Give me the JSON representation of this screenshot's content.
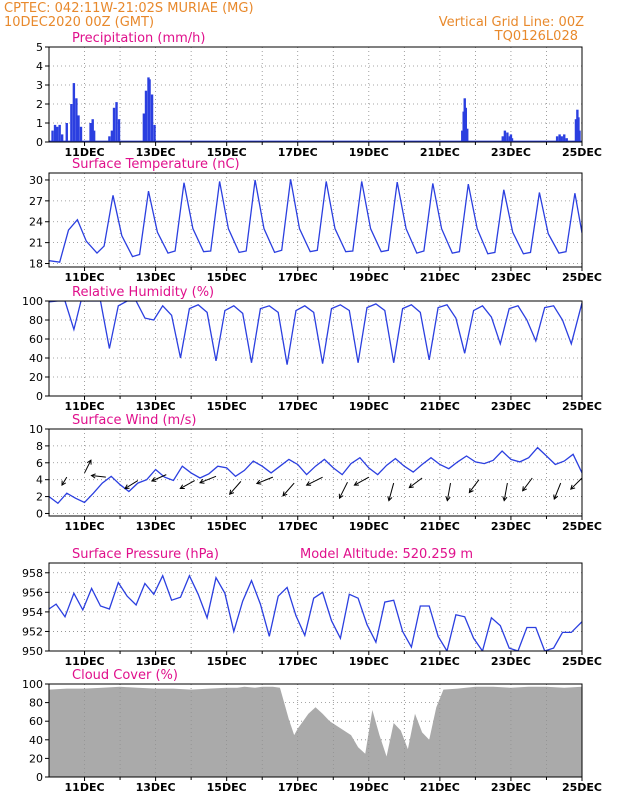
{
  "header": {
    "line1_left": "CPTEC:   042:11W-21:02S   MURIAE (MG)",
    "line2_left": "10DEC2020 00Z (GMT)",
    "line1_right": "Vertical Grid Line: 00Z",
    "line2_right": "TQ0126L028"
  },
  "colors": {
    "header": "#e8892c",
    "title": "#e0108c",
    "series": "#2b3fe0",
    "cloud": "#aaaaaa",
    "grid": "#888888"
  },
  "x_axis": {
    "tick_labels": [
      "11DEC",
      "13DEC",
      "15DEC",
      "17DEC",
      "19DEC",
      "21DEC",
      "23DEC",
      "25DEC"
    ],
    "tick_days": [
      11,
      13,
      15,
      17,
      19,
      21,
      23,
      25
    ],
    "range_days": [
      10,
      25
    ]
  },
  "chart_data": [
    {
      "type": "bar",
      "title": "Precipitation (mm/h)",
      "ylim": [
        0,
        5
      ],
      "yticks": [
        0,
        1,
        2,
        3,
        4,
        5
      ],
      "x": [
        10.1,
        10.17,
        10.23,
        10.3,
        10.37,
        10.5,
        10.63,
        10.7,
        10.77,
        10.83,
        10.9,
        11.17,
        11.2,
        11.23,
        11.27,
        11.7,
        11.77,
        11.83,
        11.9,
        11.97,
        12.67,
        12.73,
        12.8,
        12.83,
        12.9,
        12.97,
        21.63,
        21.67,
        21.7,
        21.73,
        21.77,
        22.77,
        22.83,
        22.9,
        22.97,
        23.0,
        23.03,
        24.3,
        24.37,
        24.43,
        24.5,
        24.57,
        24.83,
        24.87,
        24.9,
        24.93
      ],
      "values": [
        0.6,
        0.9,
        0.8,
        0.9,
        0.4,
        1.0,
        2.0,
        3.1,
        2.3,
        1.4,
        0.8,
        1.0,
        0.8,
        1.2,
        0.6,
        0.3,
        0.6,
        1.8,
        2.1,
        1.2,
        1.5,
        2.7,
        3.4,
        3.3,
        2.5,
        0.9,
        0.6,
        1.6,
        2.3,
        1.8,
        0.7,
        0.3,
        0.6,
        0.5,
        0.3,
        0.4,
        0.2,
        0.3,
        0.4,
        0.3,
        0.4,
        0.2,
        1.2,
        1.7,
        1.3,
        0.6
      ]
    },
    {
      "type": "line",
      "title": "Surface Temperature (nC)",
      "ylim": [
        17.5,
        31
      ],
      "yticks": [
        18,
        21,
        24,
        27,
        30
      ],
      "x": [
        10.0,
        10.3,
        10.55,
        10.8,
        11.05,
        11.35,
        11.55,
        11.8,
        12.05,
        12.35,
        12.55,
        12.8,
        13.05,
        13.35,
        13.55,
        13.8,
        14.05,
        14.35,
        14.55,
        14.8,
        15.05,
        15.35,
        15.55,
        15.8,
        16.05,
        16.35,
        16.55,
        16.8,
        17.05,
        17.35,
        17.55,
        17.8,
        18.05,
        18.35,
        18.55,
        18.8,
        19.05,
        19.35,
        19.55,
        19.8,
        20.05,
        20.35,
        20.55,
        20.8,
        21.05,
        21.35,
        21.55,
        21.8,
        22.05,
        22.35,
        22.55,
        22.8,
        23.05,
        23.35,
        23.55,
        23.8,
        24.05,
        24.35,
        24.55,
        24.8,
        25.0
      ],
      "values": [
        18.4,
        18.2,
        22.8,
        24.3,
        21.2,
        19.5,
        20.5,
        27.8,
        22.0,
        19.0,
        19.3,
        28.4,
        22.5,
        19.5,
        19.8,
        29.6,
        23.0,
        19.7,
        19.8,
        29.8,
        23.0,
        19.6,
        19.8,
        30.0,
        23.0,
        19.6,
        19.9,
        30.1,
        23.0,
        19.7,
        19.9,
        29.8,
        23.0,
        19.7,
        19.8,
        29.8,
        23.0,
        19.7,
        19.9,
        29.7,
        23.0,
        19.5,
        19.8,
        29.5,
        23.0,
        19.5,
        19.7,
        29.4,
        23.0,
        19.4,
        19.6,
        28.6,
        22.5,
        19.4,
        19.6,
        28.2,
        22.3,
        19.5,
        19.7,
        28.1,
        22.4
      ]
    },
    {
      "type": "line",
      "title": "Relative Humidity (%)",
      "ylim": [
        0,
        100
      ],
      "yticks": [
        0,
        20,
        40,
        60,
        80,
        100
      ],
      "x": [
        10.0,
        10.25,
        10.45,
        10.7,
        10.9,
        11.2,
        11.45,
        11.7,
        11.95,
        12.2,
        12.45,
        12.7,
        12.95,
        13.2,
        13.45,
        13.7,
        13.95,
        14.2,
        14.45,
        14.7,
        14.95,
        15.2,
        15.45,
        15.7,
        15.95,
        16.2,
        16.45,
        16.7,
        16.95,
        17.2,
        17.45,
        17.7,
        17.95,
        18.2,
        18.45,
        18.7,
        18.95,
        19.2,
        19.45,
        19.7,
        19.95,
        20.2,
        20.45,
        20.7,
        20.95,
        21.2,
        21.45,
        21.7,
        21.95,
        22.2,
        22.45,
        22.7,
        22.95,
        23.2,
        23.45,
        23.7,
        23.95,
        24.2,
        24.45,
        24.7,
        25.0
      ],
      "values": [
        99,
        100,
        100,
        70,
        100,
        100,
        100,
        50,
        95,
        100,
        100,
        82,
        80,
        95,
        85,
        40,
        92,
        96,
        88,
        37,
        90,
        95,
        87,
        35,
        92,
        95,
        88,
        33,
        90,
        95,
        88,
        34,
        92,
        96,
        90,
        35,
        93,
        97,
        90,
        35,
        92,
        96,
        88,
        38,
        93,
        96,
        82,
        45,
        90,
        95,
        83,
        55,
        92,
        95,
        80,
        58,
        93,
        95,
        80,
        55,
        98
      ]
    },
    {
      "type": "line",
      "title": "Surface Wind (m/s)",
      "ylim": [
        -0.3,
        10
      ],
      "yticks": [
        0,
        2,
        4,
        6,
        8,
        10
      ],
      "x": [
        10.0,
        10.25,
        10.5,
        10.75,
        11.0,
        11.25,
        11.5,
        11.75,
        12.0,
        12.25,
        12.5,
        12.75,
        13.0,
        13.25,
        13.5,
        13.75,
        14.0,
        14.25,
        14.5,
        14.75,
        15.0,
        15.25,
        15.5,
        15.75,
        16.0,
        16.25,
        16.5,
        16.75,
        17.0,
        17.25,
        17.5,
        17.75,
        18.0,
        18.25,
        18.5,
        18.75,
        19.0,
        19.25,
        19.5,
        19.75,
        20.0,
        20.25,
        20.5,
        20.75,
        21.0,
        21.25,
        21.5,
        21.75,
        22.0,
        22.25,
        22.5,
        22.75,
        23.0,
        23.25,
        23.5,
        23.75,
        24.0,
        24.25,
        24.5,
        24.75,
        25.0
      ],
      "values": [
        2.0,
        1.2,
        2.4,
        1.8,
        1.3,
        2.4,
        3.6,
        4.4,
        3.4,
        2.6,
        3.6,
        4.0,
        5.2,
        4.3,
        3.9,
        5.6,
        4.8,
        4.2,
        4.7,
        5.6,
        5.4,
        4.4,
        5.1,
        6.2,
        5.6,
        4.8,
        5.6,
        6.4,
        5.8,
        4.6,
        5.6,
        6.4,
        5.4,
        4.6,
        5.9,
        6.6,
        5.4,
        4.6,
        5.7,
        6.5,
        5.6,
        4.9,
        5.8,
        6.6,
        5.8,
        5.3,
        6.1,
        6.8,
        6.1,
        5.9,
        6.3,
        7.4,
        6.4,
        6.1,
        6.6,
        7.8,
        6.8,
        5.8,
        6.2,
        7.0,
        4.8
      ],
      "arrows": [
        {
          "x": 10.5,
          "y": 4.3,
          "u": 0.3,
          "v": 0.5
        },
        {
          "x": 11.0,
          "y": 4.8,
          "u": -0.4,
          "v": -0.8
        },
        {
          "x": 11.6,
          "y": 4.3,
          "u": 0.9,
          "v": -0.1
        },
        {
          "x": 12.5,
          "y": 3.9,
          "u": 0.8,
          "v": 0.5
        },
        {
          "x": 13.3,
          "y": 4.6,
          "u": 0.9,
          "v": 0.4
        },
        {
          "x": 14.1,
          "y": 3.9,
          "u": 0.9,
          "v": 0.5
        },
        {
          "x": 14.7,
          "y": 4.4,
          "u": 1.0,
          "v": 0.4
        },
        {
          "x": 15.4,
          "y": 3.8,
          "u": 0.7,
          "v": 0.8
        },
        {
          "x": 16.3,
          "y": 4.3,
          "u": 1.0,
          "v": 0.4
        },
        {
          "x": 16.9,
          "y": 3.6,
          "u": 0.7,
          "v": 0.8
        },
        {
          "x": 17.7,
          "y": 4.3,
          "u": 1.0,
          "v": 0.5
        },
        {
          "x": 18.4,
          "y": 3.7,
          "u": 0.5,
          "v": 1.0
        },
        {
          "x": 19.0,
          "y": 4.3,
          "u": 0.9,
          "v": 0.5
        },
        {
          "x": 19.7,
          "y": 3.6,
          "u": 0.3,
          "v": 1.1
        },
        {
          "x": 20.5,
          "y": 4.2,
          "u": 0.8,
          "v": 0.6
        },
        {
          "x": 21.3,
          "y": 3.6,
          "u": 0.2,
          "v": 1.1
        },
        {
          "x": 22.1,
          "y": 4.0,
          "u": 0.6,
          "v": 0.8
        },
        {
          "x": 22.9,
          "y": 3.6,
          "u": 0.2,
          "v": 1.1
        },
        {
          "x": 23.6,
          "y": 4.2,
          "u": 0.6,
          "v": 0.8
        },
        {
          "x": 24.4,
          "y": 3.6,
          "u": 0.4,
          "v": 1.0
        },
        {
          "x": 25.0,
          "y": 4.2,
          "u": 0.7,
          "v": 0.7
        }
      ]
    },
    {
      "type": "line",
      "title": "Surface Pressure (hPa)",
      "annotation": "Model Altitude: 520.259  m",
      "ylim": [
        950,
        959
      ],
      "yticks": [
        950,
        952,
        954,
        956,
        958
      ],
      "x": [
        10.0,
        10.2,
        10.45,
        10.7,
        10.95,
        11.2,
        11.45,
        11.7,
        11.95,
        12.2,
        12.45,
        12.7,
        12.95,
        13.2,
        13.45,
        13.7,
        13.95,
        14.2,
        14.45,
        14.7,
        14.95,
        15.2,
        15.45,
        15.7,
        15.95,
        16.2,
        16.45,
        16.7,
        16.95,
        17.2,
        17.45,
        17.7,
        17.95,
        18.2,
        18.45,
        18.7,
        18.95,
        19.2,
        19.45,
        19.7,
        19.95,
        20.2,
        20.45,
        20.7,
        20.95,
        21.2,
        21.45,
        21.7,
        21.95,
        22.2,
        22.45,
        22.7,
        22.95,
        23.2,
        23.45,
        23.7,
        23.95,
        24.2,
        24.45,
        24.7,
        25.0
      ],
      "values": [
        954.3,
        954.8,
        953.5,
        955.9,
        954.2,
        956.4,
        954.6,
        954.3,
        957.0,
        955.6,
        954.7,
        956.9,
        955.8,
        957.7,
        955.2,
        955.5,
        957.7,
        955.8,
        953.4,
        957.5,
        955.9,
        952.0,
        955.1,
        957.2,
        954.8,
        951.5,
        955.6,
        956.5,
        953.6,
        951.6,
        955.4,
        956.0,
        953.1,
        951.3,
        955.8,
        955.4,
        952.7,
        950.9,
        955.0,
        955.2,
        952.0,
        950.4,
        954.6,
        954.6,
        951.5,
        950.0,
        953.7,
        953.5,
        951.3,
        950.0,
        953.4,
        952.6,
        950.3,
        950.0,
        952.4,
        952.4,
        950.0,
        950.3,
        951.9,
        951.9,
        953.0
      ]
    },
    {
      "type": "area",
      "title": "Cloud Cover (%)",
      "ylim": [
        0,
        100
      ],
      "yticks": [
        0,
        20,
        40,
        60,
        80,
        100
      ],
      "x": [
        10.0,
        10.5,
        11.0,
        11.5,
        12.0,
        12.5,
        13.0,
        13.5,
        14.0,
        14.5,
        15.0,
        15.3,
        15.5,
        15.8,
        16.0,
        16.3,
        16.5,
        16.75,
        16.9,
        17.0,
        17.15,
        17.3,
        17.5,
        17.7,
        17.9,
        18.1,
        18.3,
        18.5,
        18.7,
        18.9,
        19.1,
        19.3,
        19.5,
        19.7,
        19.9,
        20.1,
        20.3,
        20.5,
        20.7,
        20.9,
        21.1,
        21.5,
        22.0,
        22.5,
        23.0,
        23.5,
        24.0,
        24.5,
        25.0
      ],
      "values": [
        94,
        95,
        95,
        96,
        97,
        96,
        95,
        95,
        94,
        95,
        96,
        96,
        97,
        96,
        97,
        97,
        96,
        62,
        45,
        52,
        60,
        68,
        75,
        68,
        60,
        55,
        50,
        45,
        32,
        25,
        72,
        45,
        22,
        58,
        50,
        30,
        68,
        48,
        40,
        75,
        94,
        95,
        97,
        97,
        96,
        97,
        97,
        96,
        97
      ]
    }
  ]
}
